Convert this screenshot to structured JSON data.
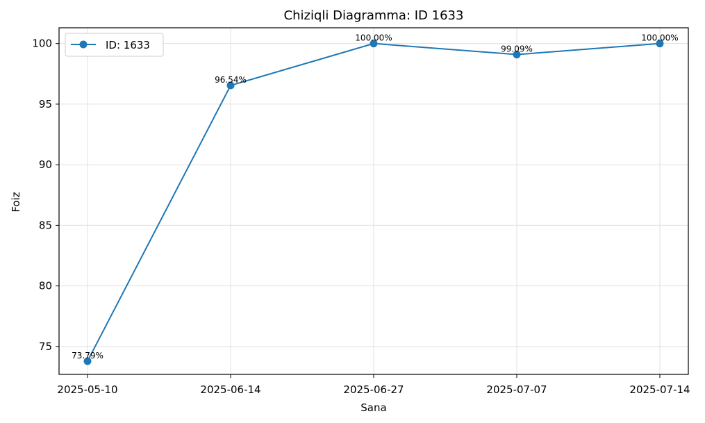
{
  "chart_data": {
    "type": "line",
    "title": "Chiziqli Diagramma: ID 1633",
    "xlabel": "Sana",
    "ylabel": "Foiz",
    "categories": [
      "2025-05-10",
      "2025-06-14",
      "2025-06-27",
      "2025-07-07",
      "2025-07-14"
    ],
    "series": [
      {
        "name": "ID: 1633",
        "values": [
          73.79,
          96.54,
          100.0,
          99.09,
          100.0
        ],
        "data_labels": [
          "73.79%",
          "96.54%",
          "100.00%",
          "99.09%",
          "100.00%"
        ]
      }
    ],
    "ylim": [
      72.7,
      101.3
    ],
    "yticks": [
      "75",
      "80",
      "85",
      "90",
      "95",
      "100"
    ],
    "ytick_values": [
      75,
      80,
      85,
      90,
      95,
      100
    ],
    "grid": true,
    "legend_position": "top-left",
    "colors": {
      "series": "#1f77b4",
      "grid": "#e0e0e0",
      "axis": "#000000"
    }
  }
}
